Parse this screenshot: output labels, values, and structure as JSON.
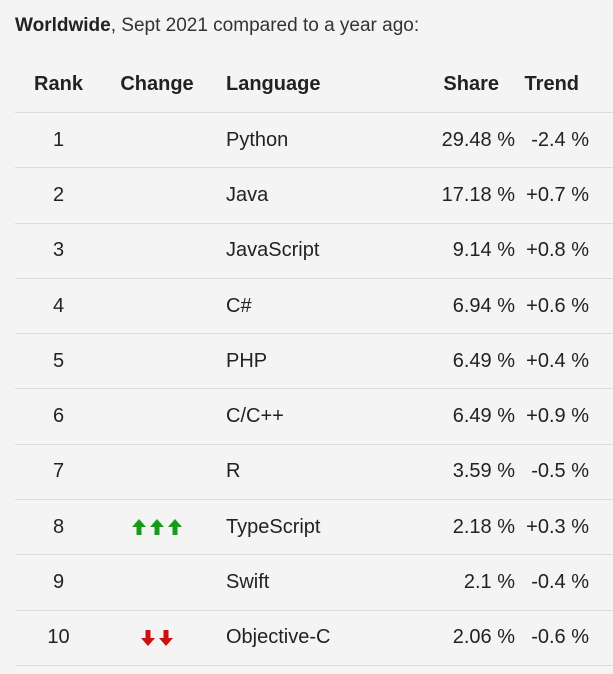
{
  "caption": {
    "bold": "Worldwide",
    "rest": ", Sept 2021 compared to a year ago:"
  },
  "headers": {
    "rank": "Rank",
    "change": "Change",
    "language": "Language",
    "share": "Share",
    "trend": "Trend"
  },
  "colors": {
    "up": "#1a9a1a",
    "down": "#cc1111"
  },
  "rows": [
    {
      "rank": "1",
      "language": "Python",
      "share": "29.48 %",
      "trend": "-2.4 %",
      "change": {
        "direction": "none",
        "count": 0
      }
    },
    {
      "rank": "2",
      "language": "Java",
      "share": "17.18 %",
      "trend": "+0.7 %",
      "change": {
        "direction": "none",
        "count": 0
      }
    },
    {
      "rank": "3",
      "language": "JavaScript",
      "share": "9.14 %",
      "trend": "+0.8 %",
      "change": {
        "direction": "none",
        "count": 0
      }
    },
    {
      "rank": "4",
      "language": "C#",
      "share": "6.94 %",
      "trend": "+0.6 %",
      "change": {
        "direction": "none",
        "count": 0
      }
    },
    {
      "rank": "5",
      "language": "PHP",
      "share": "6.49 %",
      "trend": "+0.4 %",
      "change": {
        "direction": "none",
        "count": 0
      }
    },
    {
      "rank": "6",
      "language": "C/C++",
      "share": "6.49 %",
      "trend": "+0.9 %",
      "change": {
        "direction": "none",
        "count": 0
      }
    },
    {
      "rank": "7",
      "language": "R",
      "share": "3.59 %",
      "trend": "-0.5 %",
      "change": {
        "direction": "none",
        "count": 0
      }
    },
    {
      "rank": "8",
      "language": "TypeScript",
      "share": "2.18 %",
      "trend": "+0.3 %",
      "change": {
        "direction": "up",
        "count": 3
      }
    },
    {
      "rank": "9",
      "language": "Swift",
      "share": "2.1 %",
      "trend": "-0.4 %",
      "change": {
        "direction": "none",
        "count": 0
      }
    },
    {
      "rank": "10",
      "language": "Objective-C",
      "share": "2.06 %",
      "trend": "-0.6 %",
      "change": {
        "direction": "down",
        "count": 2
      }
    }
  ]
}
